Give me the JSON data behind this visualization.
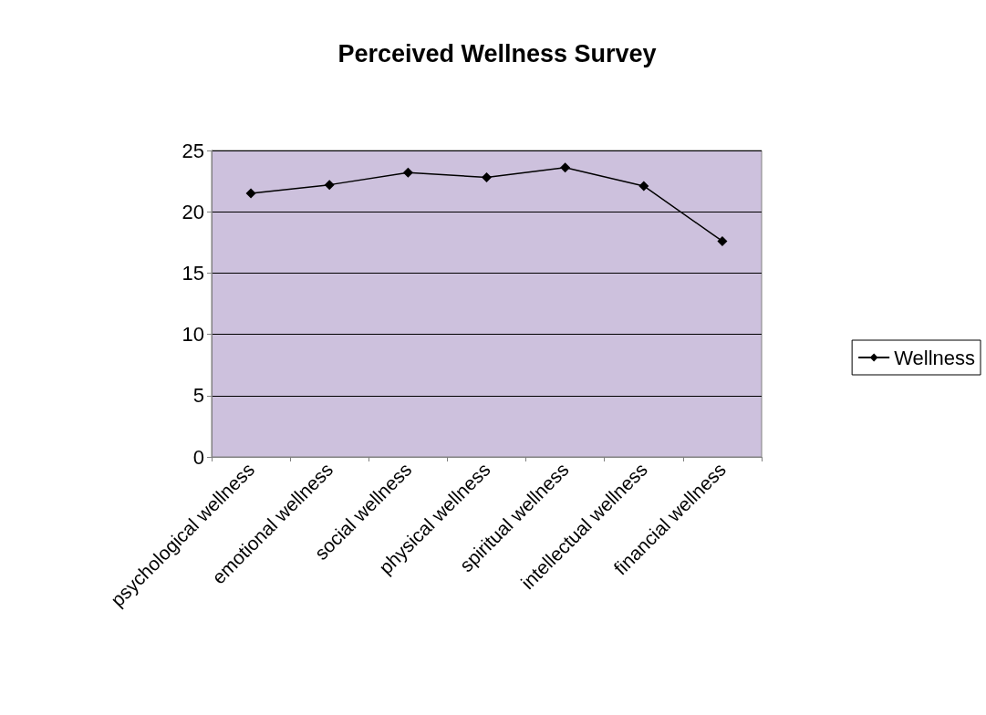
{
  "chart_data": {
    "type": "line",
    "title": "Perceived Wellness Survey",
    "categories": [
      "psychological wellness",
      "emotional wellness",
      "social wellness",
      "physical wellness",
      "spiritual wellness",
      "intellectual wellness",
      "financial wellness"
    ],
    "series": [
      {
        "name": "Wellness",
        "color": "#000000",
        "values": [
          21.5,
          22.2,
          23.2,
          22.8,
          23.6,
          22.1,
          17.6
        ]
      }
    ],
    "ylim": [
      0,
      25
    ],
    "yticks": [
      0,
      5,
      10,
      15,
      20,
      25
    ],
    "grid": "y",
    "legend": "right",
    "marker": "diamond",
    "line_style": "solid"
  }
}
